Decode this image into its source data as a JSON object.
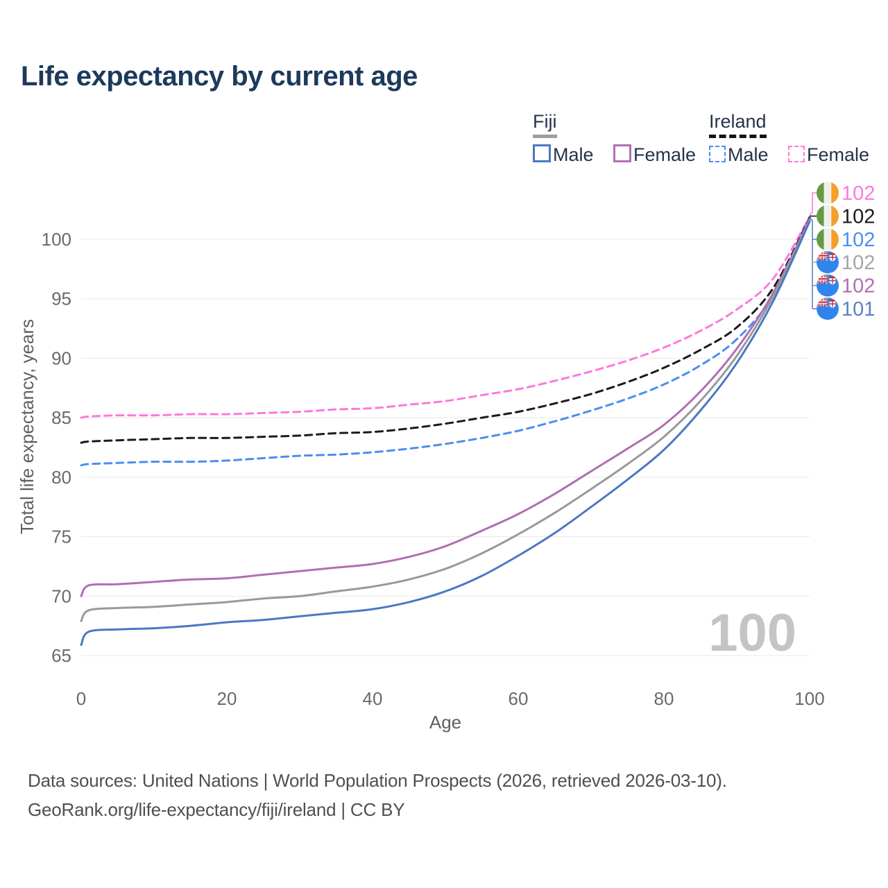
{
  "title": "Life expectancy by current age",
  "legend": {
    "groups": [
      {
        "title": "Fiji",
        "line_style": "solid",
        "line_color": "#9e9e9e",
        "items": [
          {
            "label": "Male",
            "color": "#4a78c4",
            "dashed": false
          },
          {
            "label": "Female",
            "color": "#b06fb2",
            "dashed": false
          }
        ]
      },
      {
        "title": "Ireland",
        "line_style": "dashed",
        "line_color": "#131313",
        "items": [
          {
            "label": "Male",
            "color": "#4a8ef0",
            "dashed": true
          },
          {
            "label": "Female",
            "color": "#ff77dd",
            "dashed": true
          }
        ]
      }
    ]
  },
  "chart_data": {
    "type": "line",
    "title": "Life expectancy by current age",
    "xlabel": "Age",
    "ylabel": "Total life expectancy, years",
    "x_ticks": [
      0,
      20,
      40,
      60,
      80,
      100
    ],
    "y_ticks": [
      65,
      70,
      75,
      80,
      85,
      90,
      95,
      100
    ],
    "xlim": [
      0,
      100
    ],
    "ylim": [
      64,
      103.5
    ],
    "grid": "horizontal",
    "x": [
      0,
      1,
      5,
      10,
      15,
      20,
      25,
      30,
      35,
      40,
      45,
      50,
      55,
      60,
      65,
      70,
      75,
      80,
      85,
      90,
      95,
      100
    ],
    "series": [
      {
        "name": "Ireland Female",
        "color": "#ff77dd",
        "dashed": true,
        "values": [
          85.0,
          85.1,
          85.2,
          85.2,
          85.3,
          85.3,
          85.4,
          85.5,
          85.7,
          85.8,
          86.1,
          86.4,
          86.9,
          87.4,
          88.1,
          88.9,
          89.8,
          90.9,
          92.3,
          94.1,
          96.7,
          101.9
        ]
      },
      {
        "name": "Ireland Total",
        "color": "#1a1a1a",
        "dashed": true,
        "values": [
          82.9,
          83.0,
          83.1,
          83.2,
          83.3,
          83.3,
          83.4,
          83.5,
          83.7,
          83.8,
          84.1,
          84.5,
          85.0,
          85.5,
          86.2,
          87.0,
          88.0,
          89.2,
          90.7,
          92.6,
          95.9,
          101.8
        ]
      },
      {
        "name": "Ireland Male",
        "color": "#4a8ef0",
        "dashed": true,
        "values": [
          81.0,
          81.1,
          81.2,
          81.3,
          81.3,
          81.4,
          81.6,
          81.8,
          81.9,
          82.1,
          82.4,
          82.8,
          83.3,
          83.9,
          84.7,
          85.6,
          86.6,
          87.8,
          89.4,
          91.6,
          95.3,
          101.7
        ]
      },
      {
        "name": "Fiji Female",
        "color": "#b06fb2",
        "dashed": false,
        "values": [
          70.0,
          70.9,
          71.0,
          71.2,
          71.4,
          71.5,
          71.8,
          72.1,
          72.4,
          72.7,
          73.3,
          74.2,
          75.5,
          76.9,
          78.6,
          80.5,
          82.4,
          84.4,
          87.2,
          90.8,
          95.5,
          101.7
        ]
      },
      {
        "name": "Fiji Total",
        "color": "#999999",
        "dashed": false,
        "values": [
          67.9,
          68.8,
          69.0,
          69.1,
          69.3,
          69.5,
          69.8,
          70.0,
          70.4,
          70.8,
          71.4,
          72.3,
          73.6,
          75.2,
          77.0,
          79.0,
          81.1,
          83.4,
          86.4,
          90.2,
          95.2,
          101.6
        ]
      },
      {
        "name": "Fiji Male",
        "color": "#4a78c4",
        "dashed": false,
        "values": [
          65.9,
          67.0,
          67.2,
          67.3,
          67.5,
          67.8,
          68.0,
          68.3,
          68.6,
          68.9,
          69.5,
          70.4,
          71.7,
          73.4,
          75.3,
          77.5,
          79.8,
          82.3,
          85.6,
          89.6,
          94.8,
          101.5
        ]
      }
    ],
    "legend_position": "top-right",
    "age_indicator": "100"
  },
  "end_labels": [
    {
      "flag": "ireland",
      "value": "102",
      "color": "#ff77dd"
    },
    {
      "flag": "ireland",
      "value": "102",
      "color": "#1a1a1a"
    },
    {
      "flag": "ireland",
      "value": "102",
      "color": "#4a8ef0"
    },
    {
      "flag": "fiji",
      "value": "102",
      "color": "#a6a6a6"
    },
    {
      "flag": "fiji",
      "value": "102",
      "color": "#b06fb2"
    },
    {
      "flag": "fiji",
      "value": "101",
      "color": "#5b81c2"
    }
  ],
  "footer": {
    "line1": "Data sources: United Nations | World Population Prospects (2026, retrieved 2026-03-10).",
    "line2": "GeoRank.org/life-expectancy/fiji/ireland | CC BY"
  }
}
